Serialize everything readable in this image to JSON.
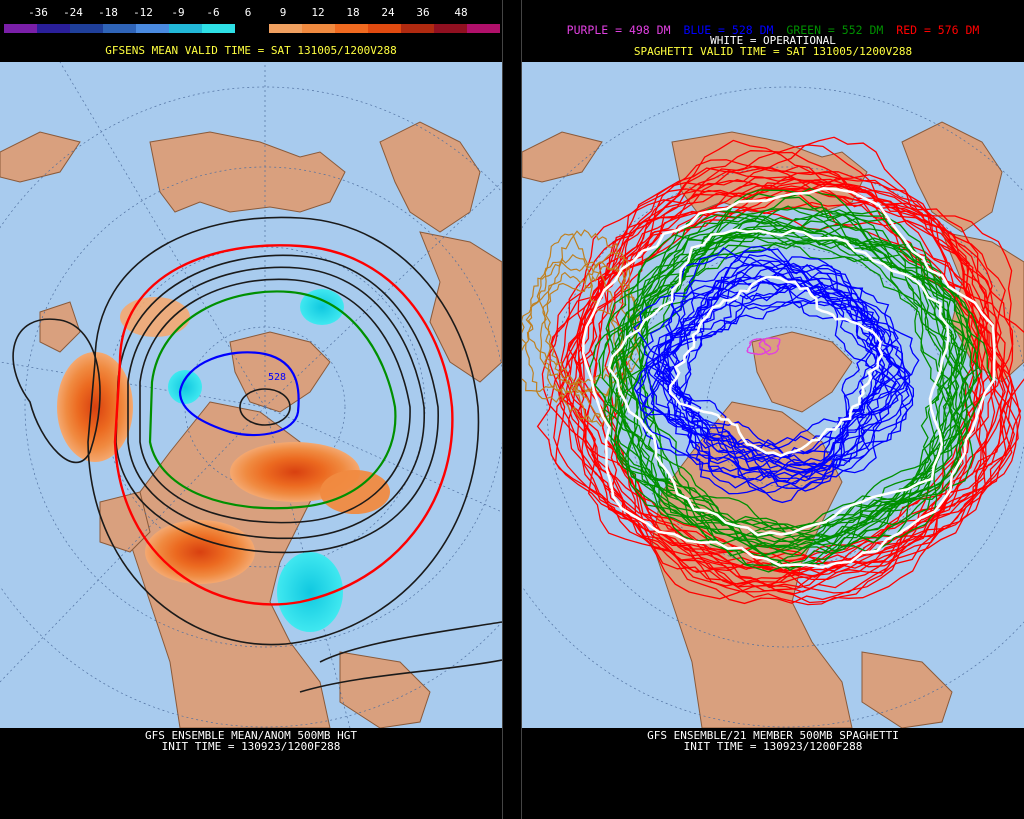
{
  "left_panel": {
    "scale_labels": [
      "-36",
      "-24",
      "-18",
      "-12",
      "-9",
      "-6",
      "6",
      "9",
      "12",
      "18",
      "24",
      "36",
      "48"
    ],
    "colorbar": [
      "#7a1fa8",
      "#2a1f9a",
      "#1f3f9a",
      "#2f64b8",
      "#4a8ae0",
      "#22b8d8",
      "#2ee0e6",
      "#000000",
      "#f0a060",
      "#f08a40",
      "#f06a20",
      "#e04a10",
      "#b02a10",
      "#901020",
      "#b0106a"
    ],
    "header": "GFSENS MEAN VALID TIME = SAT 131005/1200V288",
    "contour_label": "528",
    "footer_line1": "GFS ENSEMBLE MEAN/ANOM 500MB HGT",
    "footer_line2": "INIT TIME = 130923/1200F288"
  },
  "right_panel": {
    "legend": {
      "purple": "PURPLE = 498 DM",
      "blue": "BLUE = 528 DM",
      "green": "GREEN = 552 DM",
      "red": "RED = 576 DM",
      "white": "WHITE = OPERATIONAL"
    },
    "header": "SPAGHETTI VALID TIME = SAT 131005/1200V288",
    "footer_line1": "GFS ENSEMBLE/21 MEMBER 500MB SPAGHETTI",
    "footer_line2": "INIT TIME = 130923/1200F288"
  },
  "colors": {
    "ocean": "#a8cbee",
    "land": "#d9a07e",
    "border": "#8a5a3a",
    "purple": "#e040e0",
    "blue": "#0000ff",
    "green": "#009000",
    "red": "#ff0000",
    "white": "#ffffff",
    "header_yellow": "#ffff40"
  }
}
